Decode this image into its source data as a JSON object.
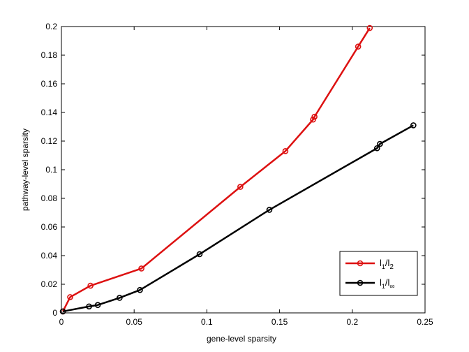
{
  "chart_data": {
    "type": "line",
    "xlabel": "gene-level sparsity",
    "ylabel": "pathway-level sparsity",
    "xlim": [
      0,
      0.25
    ],
    "ylim": [
      0,
      0.2
    ],
    "xticks": [
      "0",
      "0.05",
      "0.1",
      "0.15",
      "0.2",
      "0.25"
    ],
    "yticks": [
      "0",
      "0.02",
      "0.04",
      "0.06",
      "0.08",
      "0.1",
      "0.12",
      "0.14",
      "0.16",
      "0.18",
      "0.2"
    ],
    "grid": false,
    "legend_position": "bottom-right",
    "series": [
      {
        "name": "l1/l2",
        "legend_main": "l",
        "legend_sub1": "1",
        "legend_sep": "/l",
        "legend_sub2": "2",
        "color": "#dd1111",
        "x": [
          0.001,
          0.006,
          0.02,
          0.055,
          0.123,
          0.154,
          0.173,
          0.174,
          0.204,
          0.212
        ],
        "y": [
          0.001,
          0.011,
          0.019,
          0.031,
          0.088,
          0.113,
          0.135,
          0.137,
          0.186,
          0.199
        ]
      },
      {
        "name": "l1/l∞",
        "legend_main": "l",
        "legend_sub1": "1",
        "legend_sep": "/l",
        "legend_sub2": "∞",
        "color": "#000000",
        "x": [
          0.001,
          0.019,
          0.025,
          0.04,
          0.054,
          0.095,
          0.143,
          0.217,
          0.219,
          0.242
        ],
        "y": [
          0.001,
          0.0045,
          0.0055,
          0.0105,
          0.016,
          0.041,
          0.072,
          0.115,
          0.118,
          0.131
        ]
      }
    ]
  }
}
